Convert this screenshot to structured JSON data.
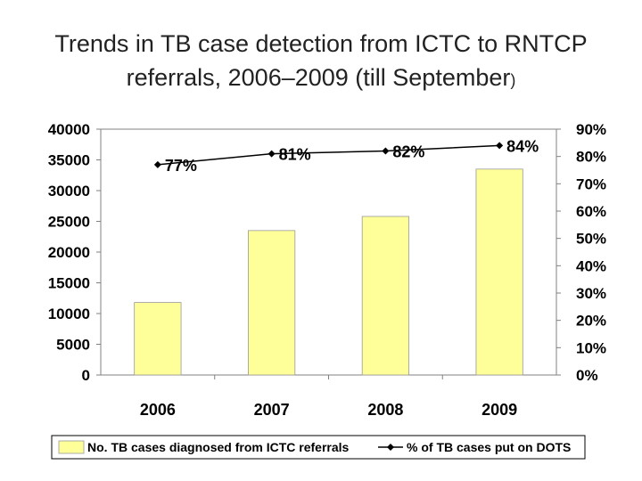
{
  "title": {
    "line1": "Trends in TB case detection from ICTC to RNTCP",
    "line2_main": "referrals, 2006–2009 (till September",
    "line2_paren": ")"
  },
  "chart_data": {
    "type": "bar+line",
    "categories": [
      "2006",
      "2007",
      "2008",
      "2009"
    ],
    "series": [
      {
        "name": "No. TB cases diagnosed from ICTC referrals",
        "type": "bar",
        "axis": "left",
        "values": [
          11800,
          23500,
          25800,
          33500
        ]
      },
      {
        "name": "% of TB cases put on DOTS",
        "type": "line",
        "axis": "right",
        "values": [
          77,
          81,
          82,
          84
        ],
        "labels": [
          "77%",
          "81%",
          "82%",
          "84%"
        ]
      }
    ],
    "y_left": {
      "min": 0,
      "max": 40000,
      "ticks": [
        "0",
        "5000",
        "10000",
        "15000",
        "20000",
        "25000",
        "30000",
        "35000",
        "40000"
      ]
    },
    "y_right": {
      "min": 0,
      "max": 90,
      "ticks": [
        "0%",
        "10%",
        "20%",
        "30%",
        "40%",
        "50%",
        "60%",
        "70%",
        "80%",
        "90%"
      ]
    },
    "legend_position": "bottom",
    "colors": {
      "bar_fill": "#ffff99",
      "bar_stroke": "#999999",
      "line": "#000000"
    }
  }
}
